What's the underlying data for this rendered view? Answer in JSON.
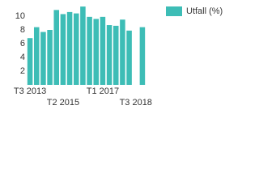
{
  "chart_data": {
    "type": "bar",
    "categories": [
      "T3 2013",
      null,
      null,
      null,
      null,
      "T2 2015",
      null,
      null,
      null,
      null,
      null,
      "T1 2017",
      null,
      null,
      null,
      null,
      "T3 2018",
      null
    ],
    "series": [
      {
        "name": "Utfall (%)",
        "color": "#3dbdb6",
        "values": [
          6.8,
          8.4,
          7.7,
          8.0,
          10.9,
          10.3,
          10.6,
          10.4,
          11.4,
          9.9,
          9.6,
          9.9,
          8.7,
          8.6,
          9.5,
          7.9,
          null,
          8.4
        ]
      }
    ],
    "ylim": [
      0,
      12
    ],
    "yticks": [
      2,
      4,
      6,
      8,
      10
    ],
    "legend": "top-right"
  }
}
